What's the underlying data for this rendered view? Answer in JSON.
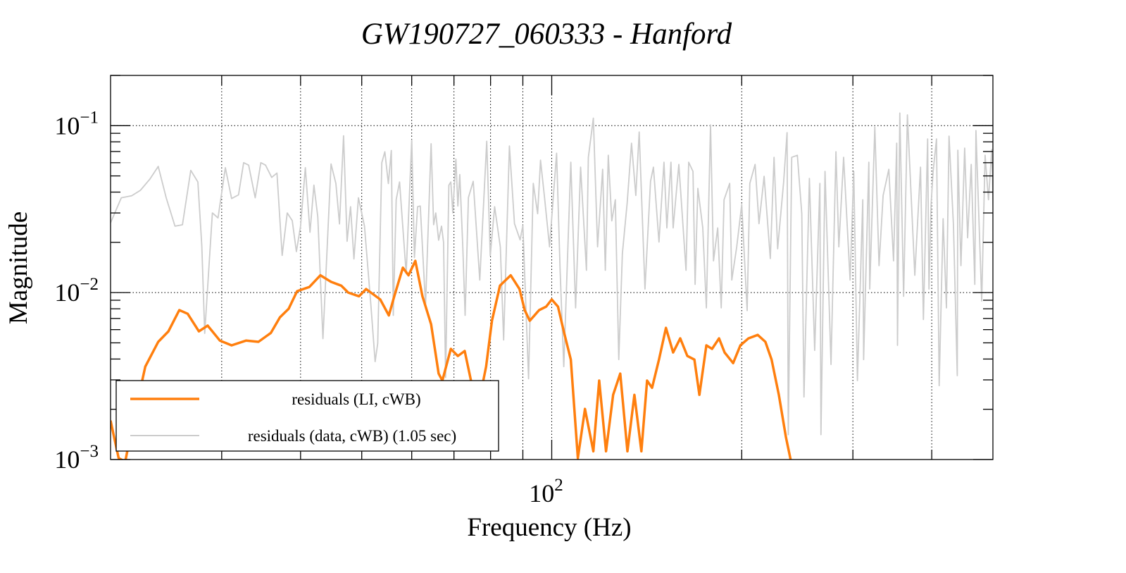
{
  "chart_data": {
    "type": "line",
    "title": "GW190727_060333 - Hanford",
    "xlabel": "Frequency (Hz)",
    "ylabel": "Magnitude",
    "xscale": "log",
    "yscale": "log",
    "xlim": [
      20,
      500
    ],
    "ylim": [
      0.001,
      0.2
    ],
    "grid": true,
    "x_gridlines": [
      30,
      40,
      50,
      60,
      70,
      80,
      90,
      100,
      200,
      300,
      400
    ],
    "y_gridlines": [
      0.01,
      0.1
    ],
    "xticks": [
      {
        "value": 100,
        "base": "10",
        "exp": "2"
      }
    ],
    "yticks": [
      {
        "value": 0.1,
        "base": "10",
        "exp": "−1"
      },
      {
        "value": 0.01,
        "base": "10",
        "exp": "−2"
      },
      {
        "value": 0.001,
        "base": "10",
        "exp": "−3"
      }
    ],
    "legend_position": "bottom-left",
    "series": [
      {
        "name": "residuals (LI, cWB)",
        "color": "#ff7f0e",
        "points": [
          [
            20,
            0.00171
          ],
          [
            20.6,
            0.00102
          ],
          [
            21.1,
            0.00097
          ],
          [
            21.7,
            0.00166
          ],
          [
            22.7,
            0.0036
          ],
          [
            23.8,
            0.00507
          ],
          [
            24.7,
            0.00586
          ],
          [
            25.7,
            0.00785
          ],
          [
            26.5,
            0.00747
          ],
          [
            27.6,
            0.00586
          ],
          [
            28.5,
            0.00634
          ],
          [
            29.8,
            0.00516
          ],
          [
            31.1,
            0.00483
          ],
          [
            32.8,
            0.00516
          ],
          [
            34.3,
            0.00507
          ],
          [
            35.9,
            0.00574
          ],
          [
            37.1,
            0.00711
          ],
          [
            38.3,
            0.008
          ],
          [
            39.5,
            0.0102
          ],
          [
            41.3,
            0.0108
          ],
          [
            43.0,
            0.0127
          ],
          [
            44.7,
            0.0116
          ],
          [
            46.4,
            0.011
          ],
          [
            47.6,
            0.01
          ],
          [
            49.5,
            0.0095
          ],
          [
            50.8,
            0.0105
          ],
          [
            53.5,
            0.0091
          ],
          [
            55.2,
            0.0073
          ],
          [
            56.3,
            0.0095
          ],
          [
            58.1,
            0.0141
          ],
          [
            59.3,
            0.0127
          ],
          [
            60.8,
            0.0155
          ],
          [
            62.4,
            0.0095
          ],
          [
            64.4,
            0.00646
          ],
          [
            66.2,
            0.00327
          ],
          [
            67.1,
            0.00297
          ],
          [
            69.2,
            0.0046
          ],
          [
            71.0,
            0.00417
          ],
          [
            72.8,
            0.00447
          ],
          [
            75.1,
            0.00257
          ],
          [
            76.3,
            0.00201
          ],
          [
            78.7,
            0.0036
          ],
          [
            80.4,
            0.00678
          ],
          [
            82.8,
            0.011
          ],
          [
            86.1,
            0.0127
          ],
          [
            88.9,
            0.0105
          ],
          [
            90.6,
            0.00785
          ],
          [
            92.3,
            0.00678
          ],
          [
            95.5,
            0.00785
          ],
          [
            98.0,
            0.00824
          ],
          [
            100,
            0.0091
          ],
          [
            102.3,
            0.00824
          ],
          [
            104.5,
            0.00586
          ],
          [
            107.2,
            0.00397
          ],
          [
            110.0,
            0.00102
          ],
          [
            112.9,
            0.00201
          ],
          [
            116.4,
            0.00112
          ],
          [
            118.9,
            0.00297
          ],
          [
            121.9,
            0.00112
          ],
          [
            125.1,
            0.00244
          ],
          [
            128.4,
            0.00327
          ],
          [
            131.8,
            0.00112
          ],
          [
            135.2,
            0.00244
          ],
          [
            138.7,
            0.00112
          ],
          [
            141.6,
            0.00297
          ],
          [
            144.2,
            0.00269
          ],
          [
            147.9,
            0.00397
          ],
          [
            151.7,
            0.00615
          ],
          [
            155.7,
            0.00438
          ],
          [
            159.8,
            0.00532
          ],
          [
            164.0,
            0.00417
          ],
          [
            168.3,
            0.00397
          ],
          [
            171.4,
            0.00244
          ],
          [
            175.8,
            0.00483
          ],
          [
            179.5,
            0.0046
          ],
          [
            184.1,
            0.00532
          ],
          [
            187.9,
            0.00438
          ],
          [
            193.8,
            0.00378
          ],
          [
            199,
            0.00483
          ],
          [
            205,
            0.00532
          ],
          [
            212,
            0.00558
          ],
          [
            218,
            0.00507
          ],
          [
            223,
            0.00397
          ],
          [
            229,
            0.00244
          ],
          [
            235,
            0.00136
          ],
          [
            239,
            0.001
          ]
        ]
      },
      {
        "name": "residuals (data, cWB) (1.05 sec)",
        "color": "#cccccc",
        "points": [
          [
            20,
            0.0262
          ],
          [
            20.8,
            0.037
          ],
          [
            21.6,
            0.038
          ],
          [
            22.3,
            0.041
          ],
          [
            23.1,
            0.048
          ],
          [
            23.8,
            0.057
          ],
          [
            24.5,
            0.037
          ],
          [
            25.3,
            0.025
          ],
          [
            26.0,
            0.0255
          ],
          [
            26.8,
            0.054
          ],
          [
            27.5,
            0.046
          ],
          [
            27.9,
            0.019
          ],
          [
            28.2,
            0.0057
          ],
          [
            29.0,
            0.03
          ],
          [
            29.6,
            0.028
          ],
          [
            30.4,
            0.056
          ],
          [
            31.1,
            0.0366
          ],
          [
            31.9,
            0.0385
          ],
          [
            32.5,
            0.06
          ],
          [
            33.1,
            0.058
          ],
          [
            33.9,
            0.037
          ],
          [
            34.6,
            0.06
          ],
          [
            35.2,
            0.058
          ],
          [
            36.0,
            0.049
          ],
          [
            36.7,
            0.052
          ],
          [
            37.4,
            0.0167
          ],
          [
            38.1,
            0.03
          ],
          [
            38.8,
            0.027
          ],
          [
            39.4,
            0.0176
          ],
          [
            40.0,
            0.025
          ],
          [
            40.7,
            0.056
          ],
          [
            41.4,
            0.023
          ],
          [
            42.0,
            0.044
          ],
          [
            42.6,
            0.0284
          ],
          [
            43.4,
            0.0053
          ],
          [
            44.7,
            0.059
          ],
          [
            45.5,
            0.045
          ],
          [
            46.1,
            0.0258
          ],
          [
            46.8,
            0.087
          ],
          [
            47.4,
            0.0203
          ],
          [
            48.0,
            0.0327
          ],
          [
            48.6,
            0.0159
          ],
          [
            49.4,
            0.037
          ],
          [
            50.5,
            0.025
          ],
          [
            51.7,
            0.0084
          ],
          [
            52.5,
            0.00386
          ],
          [
            53.0,
            0.00497
          ],
          [
            53.8,
            0.06
          ],
          [
            54.4,
            0.0697
          ],
          [
            55.1,
            0.045
          ],
          [
            55.7,
            0.071
          ],
          [
            56.1,
            0.0073
          ],
          [
            56.7,
            0.036
          ],
          [
            57.4,
            0.046
          ],
          [
            58.8,
            0.013
          ],
          [
            60.0,
            0.082
          ],
          [
            60.6,
            0.0162
          ],
          [
            61.3,
            0.0327
          ],
          [
            61.9,
            0.033
          ],
          [
            63.1,
            0.0084
          ],
          [
            64.4,
            0.078
          ],
          [
            65.0,
            0.0255
          ],
          [
            65.5,
            0.03
          ],
          [
            66.2,
            0.0206
          ],
          [
            66.9,
            0.025
          ],
          [
            67.4,
            0.02
          ],
          [
            67.9,
            0.0031
          ],
          [
            68.7,
            0.044
          ],
          [
            69.2,
            0.046
          ],
          [
            69.7,
            0.03
          ],
          [
            70.5,
            0.063
          ],
          [
            71.0,
            0.033
          ],
          [
            71.5,
            0.051
          ],
          [
            72.3,
            0.0188
          ],
          [
            72.9,
            0.0073
          ],
          [
            73.8,
            0.0371
          ],
          [
            75.1,
            0.0464
          ],
          [
            76.9,
            0.0119
          ],
          [
            78.9,
            0.0807
          ],
          [
            79.9,
            0.0166
          ],
          [
            81.2,
            0.0327
          ],
          [
            82.9,
            0.0188
          ],
          [
            83.9,
            0.0052
          ],
          [
            85.7,
            0.0755
          ],
          [
            87.3,
            0.0259
          ],
          [
            89.1,
            0.0207
          ],
          [
            90.0,
            0.0252
          ],
          [
            91.9,
            0.00305
          ],
          [
            93.5,
            0.0451
          ],
          [
            95.0,
            0.0297
          ],
          [
            96.0,
            0.0621
          ],
          [
            97.5,
            0.036
          ],
          [
            99.2,
            0.0188
          ],
          [
            101.8,
            0.0684
          ],
          [
            103.1,
            0.0136
          ],
          [
            104.5,
            0.0036
          ],
          [
            107.2,
            0.0604
          ],
          [
            109.1,
            0.0081
          ],
          [
            111.1,
            0.0564
          ],
          [
            113.5,
            0.0136
          ],
          [
            114.3,
            0.0646
          ],
          [
            116.4,
            0.111
          ],
          [
            118.2,
            0.0188
          ],
          [
            120.4,
            0.0548
          ],
          [
            121.6,
            0.0136
          ],
          [
            122.9,
            0.0665
          ],
          [
            124.5,
            0.0269
          ],
          [
            126.1,
            0.036
          ],
          [
            127.7,
            0.00397
          ],
          [
            129.4,
            0.0171
          ],
          [
            131.7,
            0.0347
          ],
          [
            133.8,
            0.0785
          ],
          [
            135.9,
            0.0382
          ],
          [
            137.6,
            0.0916
          ],
          [
            140.5,
            0.0105
          ],
          [
            143.4,
            0.0464
          ],
          [
            144.9,
            0.0564
          ],
          [
            147.9,
            0.0201
          ],
          [
            150.6,
            0.0604
          ],
          [
            152.2,
            0.0244
          ],
          [
            154.5,
            0.0604
          ],
          [
            155.7,
            0.0244
          ],
          [
            159.0,
            0.0586
          ],
          [
            163.2,
            0.0136
          ],
          [
            164.8,
            0.0604
          ],
          [
            167.4,
            0.0532
          ],
          [
            168.7,
            0.0112
          ],
          [
            170.4,
            0.0421
          ],
          [
            173.5,
            0.0244
          ],
          [
            175.8,
            0.0081
          ],
          [
            178.5,
            0.101
          ],
          [
            180.4,
            0.0155
          ],
          [
            183.2,
            0.0244
          ],
          [
            185.6,
            0.0081
          ],
          [
            187.5,
            0.036
          ],
          [
            191.4,
            0.0451
          ],
          [
            192.9,
            0.0119
          ],
          [
            196.4,
            0.0188
          ],
          [
            200,
            0.0337
          ],
          [
            203,
            0.0112
          ],
          [
            204,
            0.0078
          ],
          [
            206,
            0.0451
          ],
          [
            210,
            0.0586
          ],
          [
            213,
            0.0259
          ],
          [
            217,
            0.0497
          ],
          [
            222,
            0.016
          ],
          [
            225,
            0.0646
          ],
          [
            228,
            0.0183
          ],
          [
            233,
            0.0459
          ],
          [
            236,
            0.0908
          ],
          [
            237,
            0.00141
          ],
          [
            240,
            0.0646
          ],
          [
            245,
            0.0665
          ],
          [
            249,
            0.0297
          ],
          [
            251,
            0.00237
          ],
          [
            256,
            0.0483
          ],
          [
            261,
            0.00451
          ],
          [
            266,
            0.0451
          ],
          [
            267,
            0.00141
          ],
          [
            271,
            0.0532
          ],
          [
            277,
            0.00371
          ],
          [
            282,
            0.0698
          ],
          [
            285,
            0.0188
          ],
          [
            290,
            0.0646
          ],
          [
            297,
            0.0119
          ],
          [
            301,
            0.0532
          ],
          [
            305,
            0.00297
          ],
          [
            311,
            0.036
          ],
          [
            312,
            0.00397
          ],
          [
            318,
            0.0604
          ],
          [
            319,
            0.0105
          ],
          [
            325,
            0.0981
          ],
          [
            330,
            0.0145
          ],
          [
            335,
            0.0382
          ],
          [
            342,
            0.0548
          ],
          [
            348,
            0.0155
          ],
          [
            352,
            0.0785
          ],
          [
            353,
            0.00483
          ],
          [
            356,
            0.119
          ],
          [
            361,
            0.0095
          ],
          [
            366,
            0.116
          ],
          [
            376,
            0.0127
          ],
          [
            384,
            0.0564
          ],
          [
            388,
            0.0069
          ],
          [
            394,
            0.0832
          ],
          [
            396,
            0.0105
          ],
          [
            399,
            0.0337
          ],
          [
            402,
            0.0532
          ],
          [
            407,
            0.0832
          ],
          [
            411,
            0.00277
          ],
          [
            417,
            0.0277
          ],
          [
            422,
            0.0081
          ],
          [
            426,
            0.0865
          ],
          [
            433,
            0.0252
          ],
          [
            439,
            0.00318
          ],
          [
            440,
            0.0712
          ],
          [
            445,
            0.0145
          ],
          [
            451,
            0.0733
          ],
          [
            456,
            0.0213
          ],
          [
            462,
            0.0586
          ],
          [
            468,
            0.0112
          ],
          [
            470,
            0.0934
          ],
          [
            480,
            0.0089
          ],
          [
            486,
            0.0665
          ],
          [
            492,
            0.036
          ],
          [
            498,
            0.0719
          ],
          [
            502,
            0.0201
          ]
        ]
      }
    ]
  }
}
